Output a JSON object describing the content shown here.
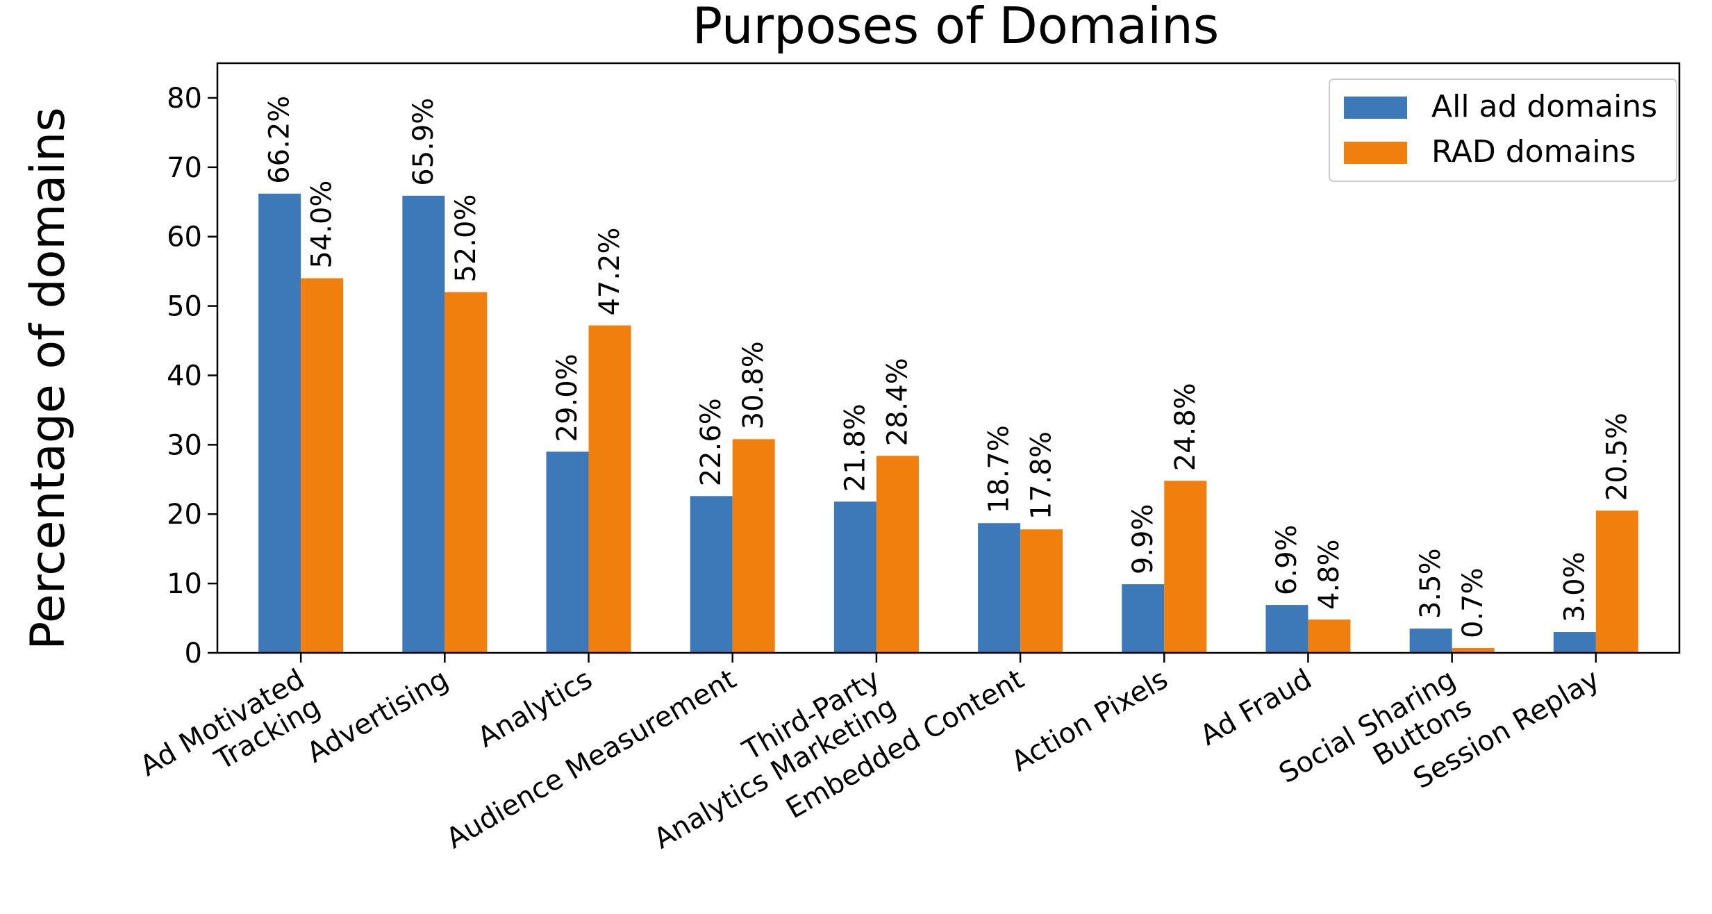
{
  "chart_data": {
    "type": "bar",
    "title": "Purposes of Domains",
    "xlabel": "",
    "ylabel": "Percentage of domains",
    "ylim": [
      0,
      85
    ],
    "yticks": [
      0,
      10,
      20,
      30,
      40,
      50,
      60,
      70,
      80
    ],
    "ytick_labels": [
      "0",
      "10",
      "20",
      "30",
      "40",
      "50",
      "60",
      "70",
      "80"
    ],
    "grid": false,
    "legend_position": "top-right",
    "categories": [
      [
        "Ad Motivated",
        "Tracking"
      ],
      [
        "Advertising"
      ],
      [
        "Analytics"
      ],
      [
        "Audience Measurement"
      ],
      [
        "Third-Party",
        "Analytics Marketing"
      ],
      [
        "Embedded Content"
      ],
      [
        "Action Pixels"
      ],
      [
        "Ad Fraud"
      ],
      [
        "Social Sharing",
        "Buttons"
      ],
      [
        "Session Replay"
      ]
    ],
    "series": [
      {
        "name": "All ad domains",
        "color": "#3d78b9",
        "values": [
          66.2,
          65.9,
          29.0,
          22.6,
          21.8,
          18.7,
          9.9,
          6.9,
          3.5,
          3.0
        ],
        "labels": [
          "66.2%",
          "65.9%",
          "29.0%",
          "22.6%",
          "21.8%",
          "18.7%",
          "9.9%",
          "6.9%",
          "3.5%",
          "3.0%"
        ]
      },
      {
        "name": "RAD domains",
        "color": "#f07f0d",
        "values": [
          54.0,
          52.0,
          47.2,
          30.8,
          28.4,
          17.8,
          24.8,
          4.8,
          0.7,
          20.5
        ],
        "labels": [
          "54.0%",
          "52.0%",
          "47.2%",
          "30.8%",
          "28.4%",
          "17.8%",
          "24.8%",
          "4.8%",
          "0.7%",
          "20.5%"
        ]
      }
    ]
  }
}
